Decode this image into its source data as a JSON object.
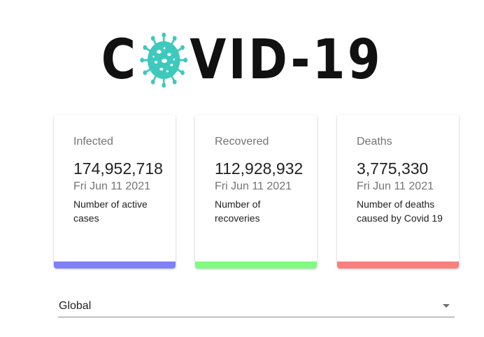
{
  "logo": {
    "prefix": "C",
    "suffix": "VID-19",
    "icon": "coronavirus-icon",
    "icon_color": "#3ec9bd"
  },
  "cards": [
    {
      "title": "Infected",
      "count": "174,952,718",
      "date": "Fri Jun 11 2021",
      "description": "Number of active cases",
      "accent": "#8080f8"
    },
    {
      "title": "Recovered",
      "count": "112,928,932",
      "date": "Fri Jun 11 2021",
      "description": "Number of recoveries",
      "accent": "#80fa80"
    },
    {
      "title": "Deaths",
      "count": "3,775,330",
      "date": "Fri Jun 11 2021",
      "description": "Number of deaths caused by Covid 19",
      "accent": "#fa8080"
    }
  ],
  "country_select": {
    "value": "Global",
    "icon": "dropdown-arrow-icon"
  }
}
